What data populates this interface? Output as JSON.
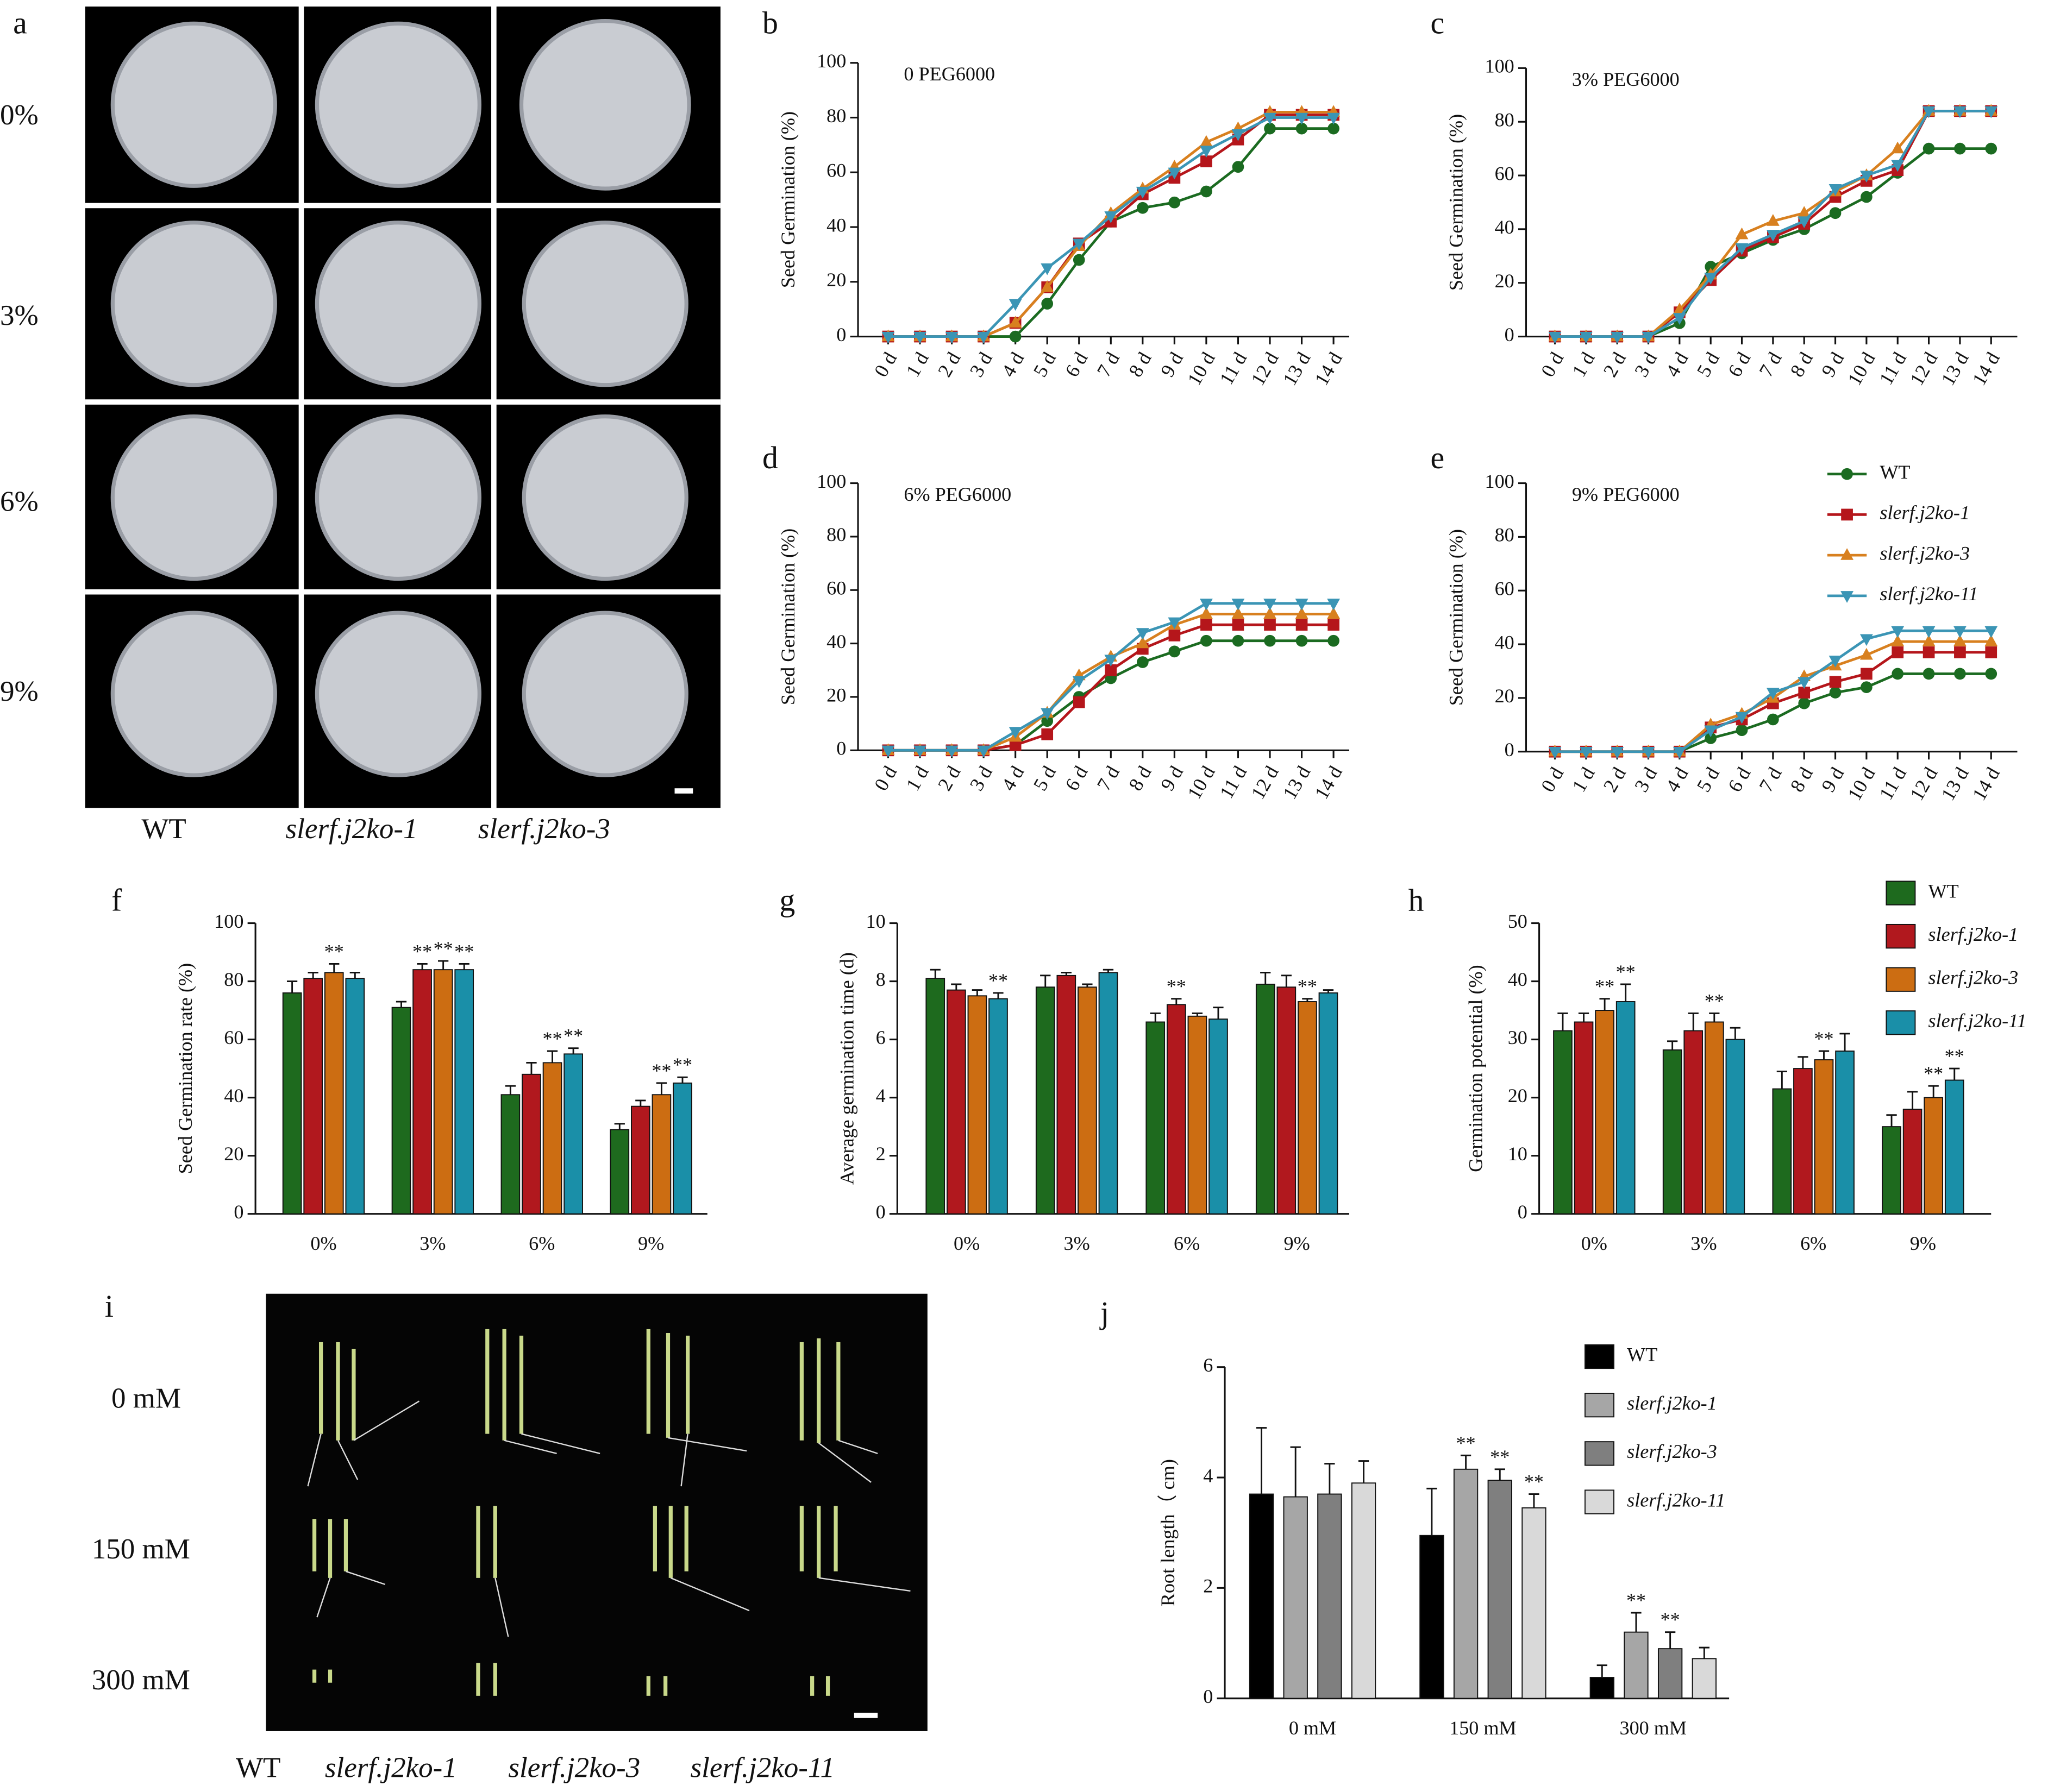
{
  "photo_a": {
    "panel": "a",
    "rows": [
      "0%",
      "3%",
      "6%",
      "9%"
    ],
    "columns": [
      "WT",
      "slerf.j2ko-1",
      "slerf.j2ko-3"
    ]
  },
  "photo_i": {
    "panel": "i",
    "rows": [
      "0 mM",
      "150 mM",
      "300 mM"
    ],
    "columns": [
      "WT",
      "slerf.j2ko-1",
      "slerf.j2ko-3",
      "slerf.j2ko-11"
    ]
  },
  "chart_data": [
    {
      "type": "line",
      "panel": "b",
      "title": "0 PEG6000",
      "ylabel": "Seed Germination (%)",
      "categories": [
        "0 d",
        "1 d",
        "2 d",
        "3 d",
        "4 d",
        "5 d",
        "6 d",
        "7 d",
        "8 d",
        "9 d",
        "10 d",
        "11 d",
        "12 d",
        "13 d",
        "14 d"
      ],
      "ylim": [
        0,
        100
      ],
      "yticks": [
        0,
        20,
        40,
        60,
        80,
        100
      ],
      "series": [
        {
          "name": "WT",
          "color": "#1b6b21",
          "marker": "circle",
          "values": [
            0,
            0,
            0,
            0,
            0,
            12,
            28,
            42,
            47,
            49,
            53,
            62,
            76,
            76,
            76
          ]
        },
        {
          "name": "slerf.j2ko-1",
          "color": "#b5161b",
          "marker": "square",
          "values": [
            0,
            0,
            0,
            0,
            5,
            18,
            34,
            42,
            52,
            58,
            64,
            72,
            81,
            81,
            81
          ]
        },
        {
          "name": "slerf.j2ko-3",
          "color": "#d8801f",
          "marker": "triangle-up",
          "values": [
            0,
            0,
            0,
            0,
            5,
            18,
            33,
            45,
            54,
            62,
            71,
            76,
            82,
            82,
            82
          ]
        },
        {
          "name": "slerf.j2ko-11",
          "color": "#3b95b5",
          "marker": "triangle-down",
          "values": [
            0,
            0,
            0,
            0,
            12,
            25,
            34,
            44,
            53,
            60,
            68,
            74,
            80,
            80,
            80
          ]
        }
      ]
    },
    {
      "type": "line",
      "panel": "c",
      "title": "3% PEG6000",
      "ylabel": "Seed Germination (%)",
      "categories": [
        "0 d",
        "1 d",
        "2 d",
        "3 d",
        "4 d",
        "5 d",
        "6 d",
        "7 d",
        "8 d",
        "9 d",
        "10 d",
        "11 d",
        "12 d",
        "13 d",
        "14 d"
      ],
      "ylim": [
        0,
        100
      ],
      "yticks": [
        0,
        20,
        40,
        60,
        80,
        100
      ],
      "series": [
        {
          "name": "WT",
          "color": "#1b6b21",
          "marker": "circle",
          "values": [
            0,
            0,
            0,
            0,
            5,
            26,
            31,
            36,
            40,
            46,
            52,
            61,
            70,
            70,
            70
          ]
        },
        {
          "name": "slerf.j2ko-1",
          "color": "#b5161b",
          "marker": "square",
          "values": [
            0,
            0,
            0,
            0,
            9,
            21,
            32,
            37,
            42,
            52,
            58,
            62,
            84,
            84,
            84
          ]
        },
        {
          "name": "slerf.j2ko-3",
          "color": "#d8801f",
          "marker": "triangle-up",
          "values": [
            0,
            0,
            0,
            0,
            10,
            23,
            38,
            43,
            46,
            54,
            60,
            70,
            84,
            84,
            84
          ]
        },
        {
          "name": "slerf.j2ko-11",
          "color": "#3b95b5",
          "marker": "triangle-down",
          "values": [
            0,
            0,
            0,
            0,
            7,
            22,
            33,
            38,
            43,
            55,
            60,
            64,
            84,
            84,
            84
          ]
        }
      ]
    },
    {
      "type": "line",
      "panel": "d",
      "title": "6% PEG6000",
      "ylabel": "Seed Germination (%)",
      "categories": [
        "0 d",
        "1 d",
        "2 d",
        "3 d",
        "4 d",
        "5 d",
        "6 d",
        "7 d",
        "8 d",
        "9 d",
        "10 d",
        "11 d",
        "12 d",
        "13 d",
        "14 d"
      ],
      "ylim": [
        0,
        100
      ],
      "yticks": [
        0,
        20,
        40,
        60,
        80,
        100
      ],
      "series": [
        {
          "name": "WT",
          "color": "#1b6b21",
          "marker": "circle",
          "values": [
            0,
            0,
            0,
            0,
            2,
            11,
            20,
            27,
            33,
            37,
            41,
            41,
            41,
            41,
            41
          ]
        },
        {
          "name": "slerf.j2ko-1",
          "color": "#b5161b",
          "marker": "square",
          "values": [
            0,
            0,
            0,
            0,
            2,
            6,
            18,
            30,
            38,
            43,
            47,
            47,
            47,
            47,
            47
          ]
        },
        {
          "name": "slerf.j2ko-3",
          "color": "#d8801f",
          "marker": "triangle-up",
          "values": [
            0,
            0,
            0,
            0,
            5,
            14,
            28,
            35,
            40,
            47,
            51,
            51,
            51,
            51,
            51
          ]
        },
        {
          "name": "slerf.j2ko-11",
          "color": "#3b95b5",
          "marker": "triangle-down",
          "values": [
            0,
            0,
            0,
            0,
            7,
            14,
            26,
            34,
            44,
            48,
            55,
            55,
            55,
            55,
            55
          ]
        }
      ]
    },
    {
      "type": "line",
      "panel": "e",
      "title": "9% PEG6000",
      "ylabel": "Seed Germination (%)",
      "legend": true,
      "categories": [
        "0 d",
        "1 d",
        "2 d",
        "3 d",
        "4 d",
        "5 d",
        "6 d",
        "7 d",
        "8 d",
        "9 d",
        "10 d",
        "11 d",
        "12 d",
        "13 d",
        "14 d"
      ],
      "ylim": [
        0,
        100
      ],
      "yticks": [
        0,
        20,
        40,
        60,
        80,
        100
      ],
      "series": [
        {
          "name": "WT",
          "color": "#1b6b21",
          "marker": "circle",
          "values": [
            0,
            0,
            0,
            0,
            0,
            5,
            8,
            12,
            18,
            22,
            24,
            29,
            29,
            29,
            29
          ]
        },
        {
          "name": "slerf.j2ko-1",
          "color": "#b5161b",
          "marker": "square",
          "values": [
            0,
            0,
            0,
            0,
            0,
            9,
            12,
            18,
            22,
            26,
            29,
            37,
            37,
            37,
            37
          ]
        },
        {
          "name": "slerf.j2ko-3",
          "color": "#d8801f",
          "marker": "triangle-up",
          "values": [
            0,
            0,
            0,
            0,
            0,
            10,
            14,
            20,
            28,
            32,
            36,
            41,
            41,
            41,
            41
          ]
        },
        {
          "name": "slerf.j2ko-11",
          "color": "#3b95b5",
          "marker": "triangle-down",
          "values": [
            0,
            0,
            0,
            0,
            0,
            8,
            13,
            22,
            26,
            34,
            42,
            45,
            45,
            45,
            45
          ]
        }
      ]
    },
    {
      "type": "bar",
      "panel": "f",
      "ylabel": "Seed Germination rate (%)",
      "categories": [
        "0%",
        "3%",
        "6%",
        "9%"
      ],
      "ylim": [
        0,
        100
      ],
      "yticks": [
        0,
        20,
        40,
        60,
        80,
        100
      ],
      "series": [
        {
          "name": "WT",
          "color": "#1e6a1e",
          "values": [
            76,
            71,
            41,
            29
          ],
          "errors": [
            4,
            2,
            3,
            2
          ],
          "sig": [
            null,
            null,
            null,
            null
          ]
        },
        {
          "name": "slerf.j2ko-1",
          "color": "#b1181e",
          "values": [
            81,
            84,
            48,
            37
          ],
          "errors": [
            2,
            2,
            4,
            2
          ],
          "sig": [
            null,
            "**",
            null,
            null
          ]
        },
        {
          "name": "slerf.j2ko-3",
          "color": "#cc6d12",
          "values": [
            83,
            84,
            52,
            41
          ],
          "errors": [
            3,
            3,
            4,
            4
          ],
          "sig": [
            "**",
            "**",
            "**",
            "**"
          ]
        },
        {
          "name": "slerf.j2ko-11",
          "color": "#1a8fa8",
          "values": [
            81,
            84,
            55,
            45
          ],
          "errors": [
            2,
            2,
            2,
            2
          ],
          "sig": [
            null,
            "**",
            "**",
            "**"
          ]
        }
      ]
    },
    {
      "type": "bar",
      "panel": "g",
      "ylabel": "Average germination time (d)",
      "categories": [
        "0%",
        "3%",
        "6%",
        "9%"
      ],
      "ylim": [
        0,
        10
      ],
      "yticks": [
        0,
        2,
        4,
        6,
        8,
        10
      ],
      "series": [
        {
          "name": "WT",
          "color": "#1e6a1e",
          "values": [
            8.1,
            7.8,
            6.6,
            7.9
          ],
          "errors": [
            0.3,
            0.4,
            0.3,
            0.4
          ],
          "sig": [
            null,
            null,
            null,
            null
          ]
        },
        {
          "name": "slerf.j2ko-1",
          "color": "#b1181e",
          "values": [
            7.7,
            8.2,
            7.2,
            7.8
          ],
          "errors": [
            0.2,
            0.1,
            0.2,
            0.4
          ],
          "sig": [
            null,
            null,
            "**",
            null
          ]
        },
        {
          "name": "slerf.j2ko-3",
          "color": "#cc6d12",
          "values": [
            7.5,
            7.8,
            6.8,
            7.3
          ],
          "errors": [
            0.2,
            0.1,
            0.1,
            0.1
          ],
          "sig": [
            null,
            null,
            null,
            "**"
          ]
        },
        {
          "name": "slerf.j2ko-11",
          "color": "#1a8fa8",
          "values": [
            7.4,
            8.3,
            6.7,
            7.6
          ],
          "errors": [
            0.2,
            0.1,
            0.4,
            0.1
          ],
          "sig": [
            "**",
            null,
            null,
            null
          ]
        }
      ]
    },
    {
      "type": "bar",
      "panel": "h",
      "ylabel": "Germination potential (%)",
      "legend": true,
      "categories": [
        "0%",
        "3%",
        "6%",
        "9%"
      ],
      "ylim": [
        0,
        50
      ],
      "yticks": [
        0,
        10,
        20,
        30,
        40,
        50
      ],
      "series": [
        {
          "name": "WT",
          "color": "#1e6a1e",
          "values": [
            31.5,
            28.2,
            21.5,
            15
          ],
          "errors": [
            3,
            1.5,
            3,
            2
          ],
          "sig": [
            null,
            null,
            null,
            null
          ]
        },
        {
          "name": "slerf.j2ko-1",
          "color": "#b1181e",
          "values": [
            33,
            31.5,
            25,
            18
          ],
          "errors": [
            1.5,
            3,
            2,
            3
          ],
          "sig": [
            null,
            null,
            null,
            null
          ]
        },
        {
          "name": "slerf.j2ko-3",
          "color": "#cc6d12",
          "values": [
            35,
            33,
            26.5,
            20
          ],
          "errors": [
            2,
            1.5,
            1.5,
            2
          ],
          "sig": [
            "**",
            "**",
            "**",
            "**"
          ]
        },
        {
          "name": "slerf.j2ko-11",
          "color": "#1a8fa8",
          "values": [
            36.5,
            30,
            28,
            23
          ],
          "errors": [
            3,
            2,
            3,
            2
          ],
          "sig": [
            "**",
            null,
            null,
            "**"
          ]
        }
      ]
    },
    {
      "type": "bar",
      "panel": "j",
      "ylabel": "Root length（ cm)",
      "legend": true,
      "categories": [
        "0 mM",
        "150 mM",
        "300 mM"
      ],
      "ylim": [
        0,
        6
      ],
      "yticks": [
        0,
        2,
        4,
        6
      ],
      "series": [
        {
          "name": "WT",
          "color": "#000000",
          "values": [
            3.7,
            2.95,
            0.38
          ],
          "errors": [
            1.2,
            0.85,
            0.22
          ],
          "sig": [
            null,
            null,
            null
          ]
        },
        {
          "name": "slerf.j2ko-1",
          "color": "#a6a6a6",
          "values": [
            3.65,
            4.15,
            1.2
          ],
          "errors": [
            0.9,
            0.25,
            0.35
          ],
          "sig": [
            null,
            "**",
            "**"
          ]
        },
        {
          "name": "slerf.j2ko-3",
          "color": "#7f7f7f",
          "values": [
            3.7,
            3.95,
            0.9
          ],
          "errors": [
            0.55,
            0.2,
            0.3
          ],
          "sig": [
            null,
            "**",
            "**"
          ]
        },
        {
          "name": "slerf.j2ko-11",
          "color": "#d9d9d9",
          "values": [
            3.9,
            3.45,
            0.72
          ],
          "errors": [
            0.4,
            0.25,
            0.2
          ],
          "sig": [
            null,
            "**",
            null
          ]
        }
      ]
    }
  ]
}
